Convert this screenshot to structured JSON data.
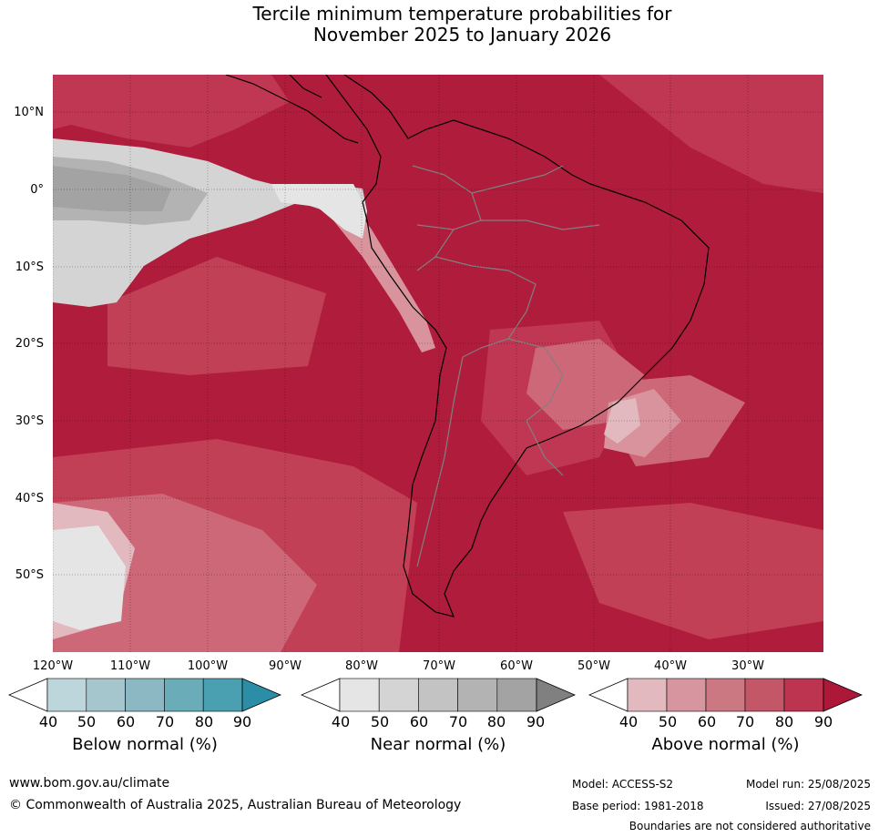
{
  "title_line1": "Tercile minimum temperature probabilities for",
  "title_line2": "November 2025 to January 2026",
  "lat_labels": [
    "10°N",
    "0°",
    "10°S",
    "20°S",
    "30°S",
    "40°S",
    "50°S"
  ],
  "lon_labels": [
    "120°W",
    "110°W",
    "100°W",
    "90°W",
    "80°W",
    "70°W",
    "60°W",
    "50°W",
    "40°W",
    "30°W"
  ],
  "colorbars": {
    "below": {
      "label": "Below normal (%)",
      "ticks": [
        "40",
        "50",
        "60",
        "70",
        "80",
        "90"
      ],
      "colors": [
        "#ffffff",
        "#bcd6db",
        "#a5c6cd",
        "#8bb8c2",
        "#6aacb8",
        "#4aa0b0",
        "#2b8ea6"
      ]
    },
    "near": {
      "label": "Near normal (%)",
      "ticks": [
        "40",
        "50",
        "60",
        "70",
        "80",
        "90"
      ],
      "colors": [
        "#ffffff",
        "#e5e5e5",
        "#d4d4d4",
        "#c3c3c3",
        "#b3b3b3",
        "#a3a3a3",
        "#808080"
      ]
    },
    "above": {
      "label": "Above normal (%)",
      "ticks": [
        "40",
        "50",
        "60",
        "70",
        "80",
        "90"
      ],
      "colors": [
        "#ffffff",
        "#e2b9bf",
        "#d7969f",
        "#cc7882",
        "#c35667",
        "#bc3450",
        "#ad1738"
      ]
    }
  },
  "footer": {
    "url": "www.bom.gov.au/climate",
    "copyright": "© Commonwealth of Australia 2025, Australian Bureau of Meteorology",
    "model": "Model: ACCESS-S2",
    "base_period": "Base period: 1981-2018",
    "model_run": "Model run: 25/08/2025",
    "issued": "Issued: 27/08/2025",
    "disclaimer": "Boundaries are not considered authoritative"
  }
}
